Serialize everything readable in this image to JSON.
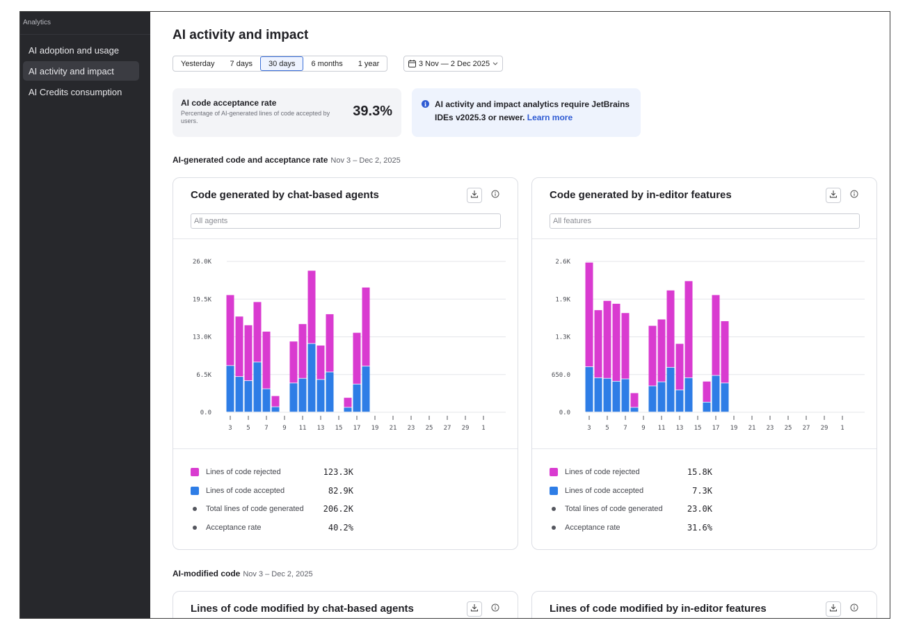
{
  "sidebar": {
    "heading": "Analytics",
    "items": [
      {
        "label": "AI adoption and usage"
      },
      {
        "label": "AI activity and impact"
      },
      {
        "label": "AI Credits consumption"
      }
    ]
  },
  "page": {
    "title": "AI activity and impact"
  },
  "range": {
    "options": [
      "Yesterday",
      "7 days",
      "30 days",
      "6 months",
      "1 year"
    ],
    "selected": "30 days",
    "date_range": "3 Nov — 2 Dec 2025"
  },
  "kpi": {
    "title": "AI code acceptance rate",
    "description": "Percentage of AI-generated lines of code accepted by users.",
    "value": "39.3%"
  },
  "banner": {
    "icon": "i",
    "text": "AI activity and impact analytics require JetBrains IDEs v2025.3 or newer.",
    "link": "Learn more"
  },
  "sections": [
    {
      "title": "AI-generated code and acceptance rate",
      "date": "Nov 3 – Dec 2, 2025"
    },
    {
      "title": "AI-modified code",
      "date": "Nov 3 – Dec 2, 2025"
    }
  ],
  "colors": {
    "rejected": "#d93bd0",
    "accepted": "#2e7de6"
  },
  "cards": [
    {
      "title": "Code generated by chat-based agents",
      "filter_placeholder": "All agents",
      "legend": [
        {
          "label": "Lines of code rejected",
          "value": "123.3K"
        },
        {
          "label": "Lines of code accepted",
          "value": "82.9K"
        },
        {
          "label": "Total lines of code generated",
          "value": "206.2K"
        },
        {
          "label": "Acceptance rate",
          "value": "40.2%"
        }
      ]
    },
    {
      "title": "Code generated by in-editor features",
      "filter_placeholder": "All features",
      "legend": [
        {
          "label": "Lines of code rejected",
          "value": "15.8K"
        },
        {
          "label": "Lines of code accepted",
          "value": "7.3K"
        },
        {
          "label": "Total lines of code generated",
          "value": "23.0K"
        },
        {
          "label": "Acceptance rate",
          "value": "31.6%"
        }
      ]
    },
    {
      "title": "Lines of code modified by chat-based agents"
    },
    {
      "title": "Lines of code modified by in-editor features"
    }
  ],
  "chart_data": [
    {
      "type": "bar",
      "stacked": true,
      "categories": [
        "3",
        "4",
        "5",
        "6",
        "7",
        "8",
        "9",
        "10",
        "11",
        "12",
        "13",
        "14",
        "15",
        "16",
        "17",
        "18",
        "19",
        "20",
        "21",
        "22",
        "23",
        "24",
        "25",
        "26",
        "27",
        "28",
        "29",
        "30",
        "1"
      ],
      "x_tick_labels": [
        "3",
        "5",
        "7",
        "9",
        "11",
        "13",
        "15",
        "17",
        "19",
        "21",
        "23",
        "25",
        "27",
        "29",
        "1"
      ],
      "y_tick_labels": [
        "0.0",
        "6.5K",
        "13.0K",
        "19.5K",
        "26.0K"
      ],
      "ylim": [
        0,
        26000
      ],
      "grid": true,
      "series": [
        {
          "name": "Lines of code accepted",
          "values": [
            8000,
            6100,
            5400,
            8600,
            4000,
            900,
            0,
            5000,
            5800,
            11800,
            5600,
            6900,
            0,
            800,
            4800,
            7900,
            0,
            0,
            0,
            0,
            0,
            0,
            0,
            0,
            0,
            0,
            0,
            0,
            0
          ]
        },
        {
          "name": "Lines of code rejected",
          "values": [
            12200,
            10400,
            9600,
            10400,
            9900,
            1900,
            0,
            7200,
            9400,
            12600,
            5900,
            10000,
            0,
            1700,
            8900,
            13600,
            0,
            0,
            0,
            0,
            0,
            0,
            0,
            0,
            0,
            0,
            0,
            0,
            0
          ]
        }
      ]
    },
    {
      "type": "bar",
      "stacked": true,
      "categories": [
        "3",
        "4",
        "5",
        "6",
        "7",
        "8",
        "9",
        "10",
        "11",
        "12",
        "13",
        "14",
        "15",
        "16",
        "17",
        "18",
        "19",
        "20",
        "21",
        "22",
        "23",
        "24",
        "25",
        "26",
        "27",
        "28",
        "29",
        "30",
        "1"
      ],
      "x_tick_labels": [
        "3",
        "5",
        "7",
        "9",
        "11",
        "13",
        "15",
        "17",
        "19",
        "21",
        "23",
        "25",
        "27",
        "29",
        "1"
      ],
      "y_tick_labels": [
        "0.0",
        "650.0",
        "1.3K",
        "1.9K",
        "2.6K"
      ],
      "ylim": [
        0,
        2600
      ],
      "grid": true,
      "series": [
        {
          "name": "Lines of code accepted",
          "values": [
            780,
            590,
            580,
            530,
            570,
            80,
            0,
            450,
            520,
            770,
            380,
            590,
            0,
            170,
            630,
            500,
            0,
            0,
            0,
            0,
            0,
            0,
            0,
            0,
            0,
            0,
            0,
            0,
            0
          ]
        },
        {
          "name": "Lines of code rejected",
          "values": [
            1800,
            1170,
            1340,
            1340,
            1140,
            250,
            0,
            1040,
            1080,
            1330,
            800,
            1670,
            0,
            360,
            1390,
            1070,
            0,
            0,
            0,
            0,
            0,
            0,
            0,
            0,
            0,
            0,
            0,
            0,
            0
          ]
        }
      ]
    }
  ]
}
